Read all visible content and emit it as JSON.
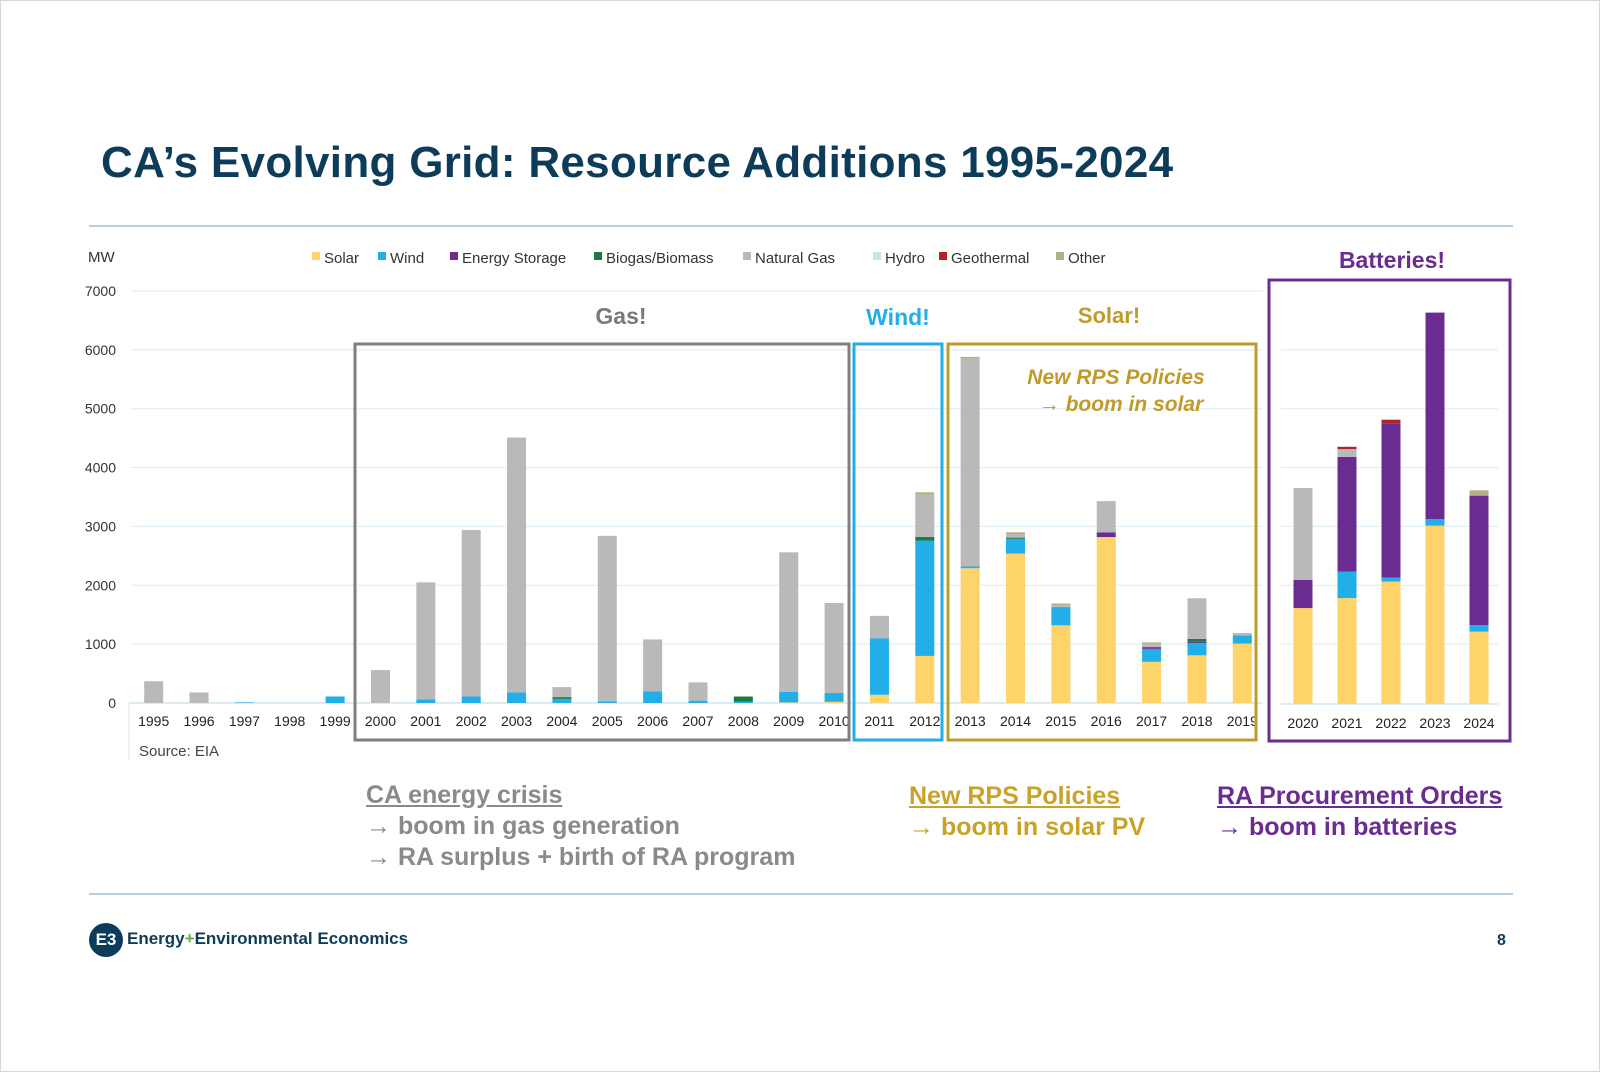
{
  "slide": {
    "title": "CA’s Evolving Grid: Resource Additions 1995-2024",
    "page_number": "8",
    "footer": {
      "org_left": "Energy",
      "org_plus": "+",
      "org_right": "Environmental Economics",
      "logo_text": "E3"
    }
  },
  "notes": {
    "gas": {
      "head": "CA energy crisis",
      "line1": "→ boom in gas generation",
      "line2": "→ RA surplus + birth of RA program"
    },
    "solar": {
      "head": "New RPS Policies",
      "line1": "→ boom in solar PV"
    },
    "batteries": {
      "head": "RA Procurement Orders",
      "line1": "→ boom in batteries"
    }
  },
  "colors": {
    "Solar": "#fdd36a",
    "Wind": "#22aee8",
    "Energy Storage": "#6a2c91",
    "Biogas/Biomass": "#1b7a3e",
    "Natural Gas": "#b9b9b9",
    "Hydro": "#c9e3ec",
    "Geothermal": "#b3232a",
    "Other": "#b5ae85",
    "gas_box": "#7f7f7f",
    "wind_box": "#22aee8",
    "solar_box": "#c09a2b",
    "battery_box": "#6a2c91",
    "title": "#0d3c5a"
  },
  "chart_data": {
    "type": "bar",
    "stacked": true,
    "ylabel": "MW",
    "ylim": [
      0,
      7000
    ],
    "yticks": [
      0,
      1000,
      2000,
      3000,
      4000,
      5000,
      6000,
      7000
    ],
    "source": "Source: EIA",
    "legend_position": "top",
    "categories_main": [
      "1995",
      "1996",
      "1997",
      "1998",
      "1999",
      "2000",
      "2001",
      "2002",
      "2003",
      "2004",
      "2005",
      "2006",
      "2007",
      "2008",
      "2009",
      "2010",
      "2011",
      "2012",
      "2013",
      "2014",
      "2015",
      "2016",
      "2017",
      "2018",
      "2019"
    ],
    "categories_inset": [
      "2020",
      "2021",
      "2022",
      "2023",
      "2024"
    ],
    "series": [
      {
        "name": "Solar",
        "main": [
          0,
          0,
          0,
          0,
          0,
          0,
          0,
          0,
          0,
          0,
          0,
          0,
          0,
          0,
          10,
          20,
          140,
          800,
          2290,
          2540,
          1320,
          2820,
          700,
          810,
          1010
        ],
        "inset": [
          1630,
          1800,
          2080,
          3030,
          1230
        ]
      },
      {
        "name": "Wind",
        "main": [
          0,
          0,
          10,
          0,
          110,
          0,
          60,
          110,
          180,
          70,
          30,
          200,
          40,
          20,
          180,
          150,
          960,
          1960,
          30,
          250,
          310,
          0,
          220,
          210,
          140
        ],
        "inset": [
          0,
          450,
          70,
          110,
          110
        ]
      },
      {
        "name": "Energy Storage",
        "main": [
          0,
          0,
          0,
          0,
          0,
          0,
          0,
          0,
          0,
          0,
          0,
          0,
          0,
          0,
          0,
          0,
          0,
          0,
          0,
          0,
          0,
          80,
          30,
          20,
          0
        ],
        "inset": [
          480,
          1950,
          2620,
          3510,
          2200
        ]
      },
      {
        "name": "Biogas/Biomass",
        "main": [
          0,
          0,
          0,
          0,
          0,
          0,
          0,
          0,
          0,
          30,
          0,
          0,
          0,
          90,
          0,
          0,
          0,
          60,
          0,
          20,
          0,
          0,
          0,
          50,
          0
        ],
        "inset": [
          0,
          0,
          0,
          0,
          0
        ]
      },
      {
        "name": "Natural Gas",
        "main": [
          370,
          180,
          0,
          0,
          0,
          560,
          1990,
          2830,
          4330,
          170,
          2810,
          880,
          310,
          0,
          2370,
          1530,
          380,
          720,
          3530,
          60,
          30,
          530,
          60,
          690,
          40
        ],
        "inset": [
          1560,
          130,
          0,
          0,
          0
        ]
      },
      {
        "name": "Hydro",
        "main": [
          0,
          0,
          0,
          0,
          0,
          0,
          0,
          0,
          0,
          0,
          0,
          0,
          0,
          0,
          0,
          0,
          0,
          0,
          0,
          0,
          0,
          0,
          0,
          0,
          0
        ],
        "inset": [
          0,
          0,
          0,
          0,
          0
        ]
      },
      {
        "name": "Geothermal",
        "main": [
          0,
          0,
          0,
          0,
          0,
          0,
          0,
          0,
          0,
          0,
          0,
          0,
          0,
          0,
          0,
          0,
          0,
          0,
          0,
          0,
          0,
          0,
          0,
          0,
          0
        ],
        "inset": [
          0,
          40,
          60,
          0,
          0
        ]
      },
      {
        "name": "Other",
        "main": [
          0,
          0,
          0,
          0,
          0,
          0,
          0,
          0,
          0,
          0,
          0,
          0,
          0,
          0,
          0,
          0,
          0,
          40,
          30,
          30,
          30,
          0,
          20,
          0,
          0
        ],
        "inset": [
          0,
          0,
          0,
          0,
          90
        ]
      }
    ],
    "annotations": {
      "gas": "Gas!",
      "wind": "Wind!",
      "solar": "Solar!",
      "batteries": "Batteries!",
      "rps_line1": "New RPS Policies",
      "rps_line2": "→ boom in solar"
    }
  }
}
